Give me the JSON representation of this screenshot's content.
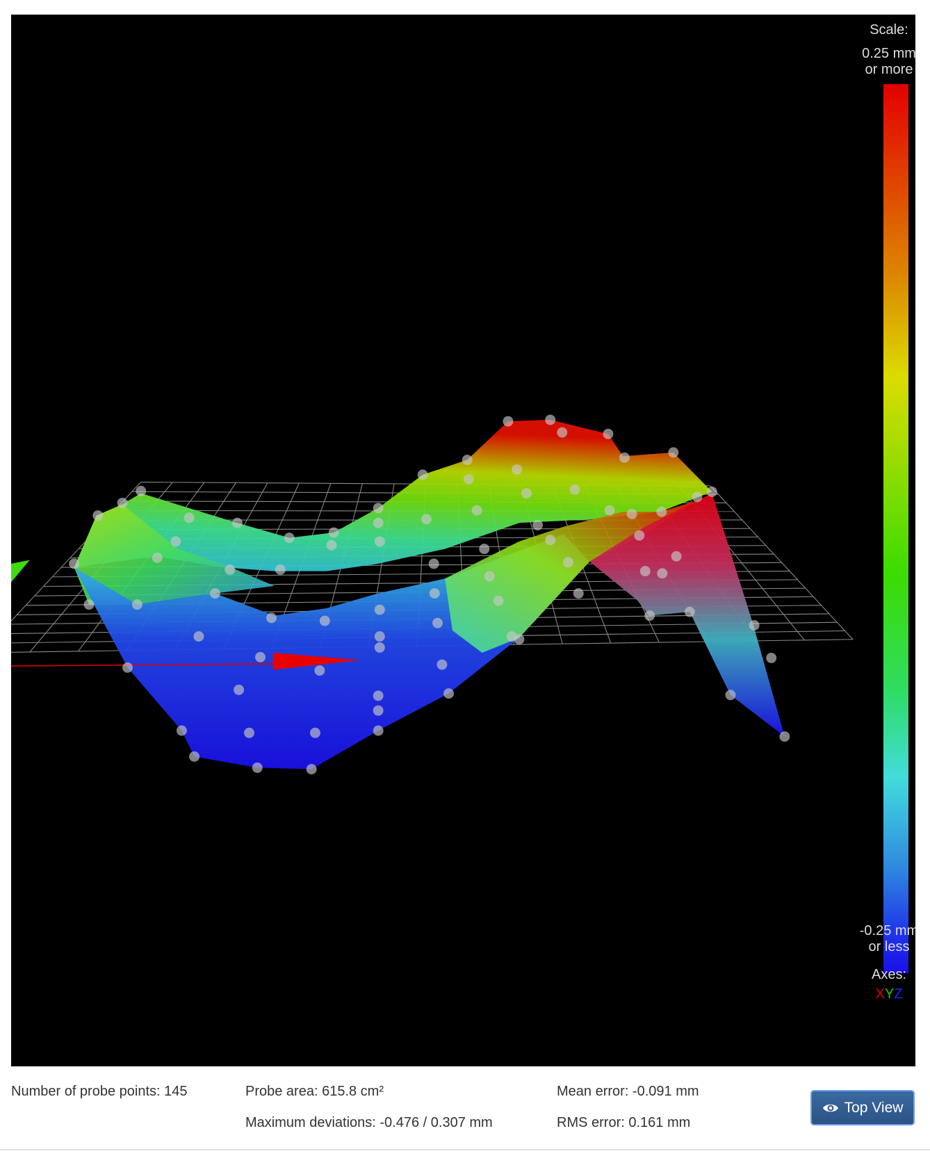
{
  "legend": {
    "scale_label": "Scale:",
    "max_label_line1": "0.25 mm",
    "max_label_line2": "or more",
    "min_label_line1": "-0.25 mm",
    "min_label_line2": "or less",
    "axes_label": "Axes:",
    "axis_x": "X",
    "axis_y": "Y",
    "axis_z": "Z",
    "colors": {
      "max": "#e20000",
      "mid": "#3bdc00",
      "min": "#1a0ee8",
      "axis_x": "#e00000",
      "axis_y": "#22cc00",
      "axis_z": "#2222ff"
    }
  },
  "stats": {
    "probe_points": "Number of probe points: 145",
    "probe_area": "Probe area: 615.8 cm²",
    "max_deviations": "Maximum deviations: -0.476 / 0.307 mm",
    "mean_error": "Mean error: -0.091 mm",
    "rms_error": "RMS error: 0.161 mm"
  },
  "buttons": {
    "top_view": "Top View",
    "top_view_icon": "eye-icon",
    "button_color": "#2f5a8e"
  }
}
